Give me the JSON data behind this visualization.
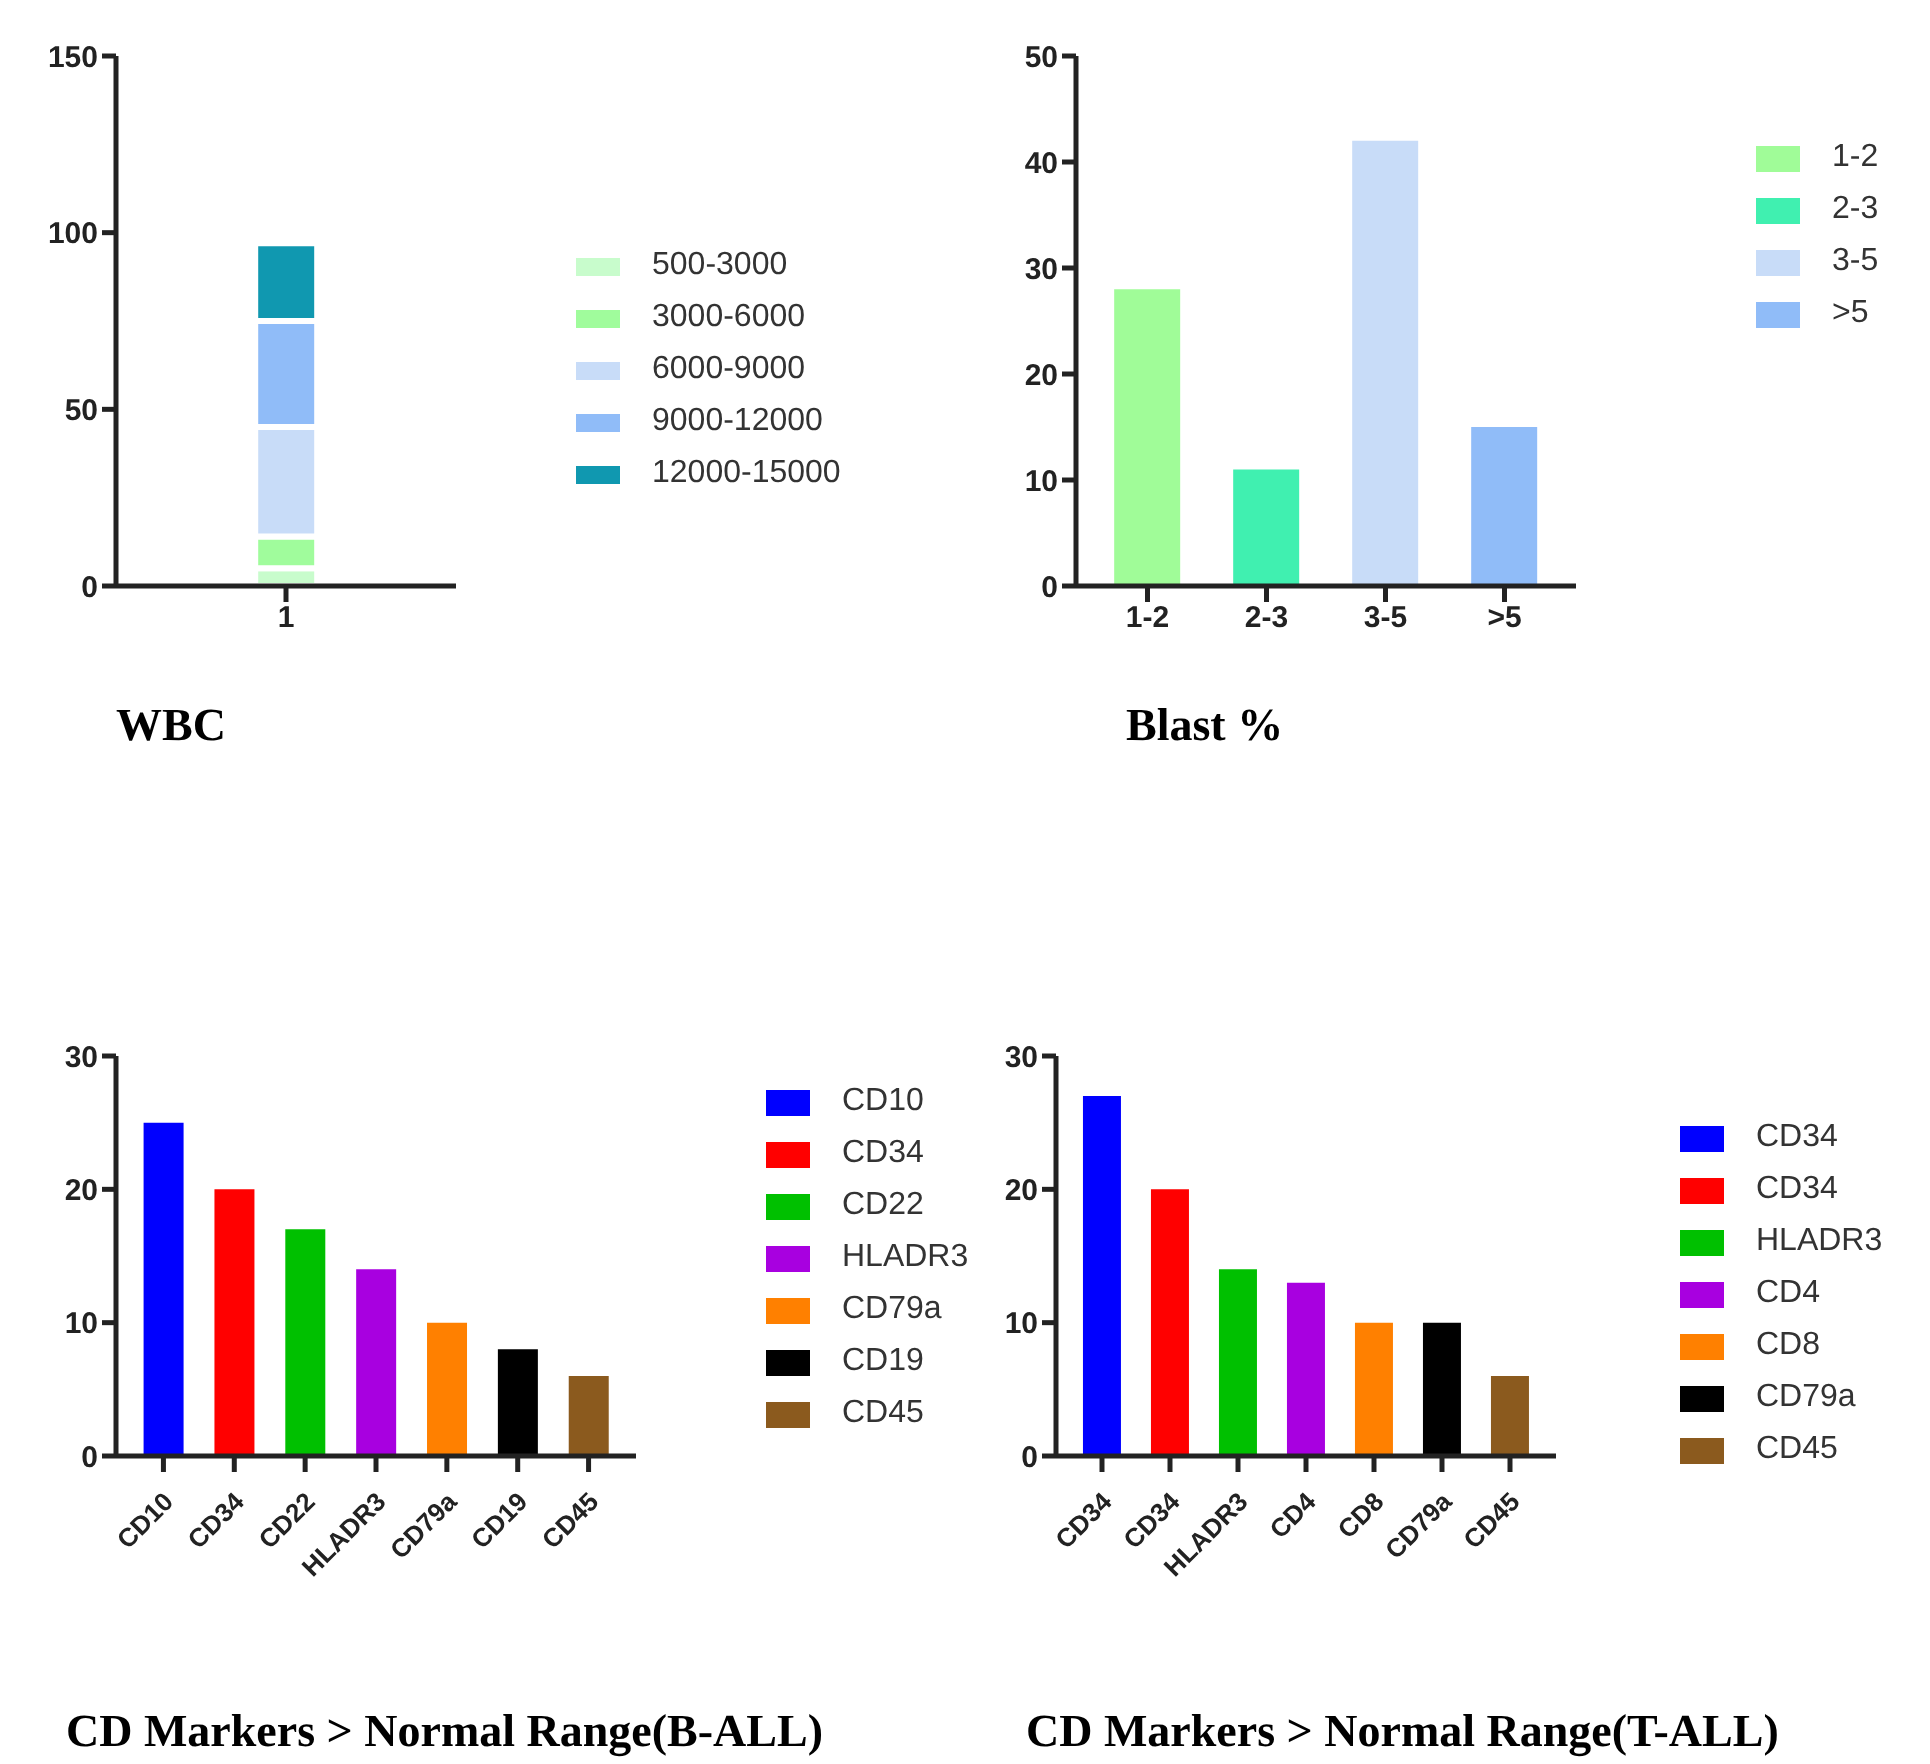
{
  "chart_data": [
    {
      "type": "bar",
      "title": "WBC",
      "categories": [
        "1"
      ],
      "stacked": true,
      "ylim": [
        0,
        150
      ],
      "yticks": [
        0,
        50,
        100,
        150
      ],
      "legend": "right",
      "series": [
        {
          "name": "500-3000",
          "color": "#c8fccc",
          "values": [
            5
          ]
        },
        {
          "name": "3000-6000",
          "color": "#a0fc9c",
          "values": [
            9
          ]
        },
        {
          "name": "6000-9000",
          "color": "#c8dcf8",
          "values": [
            31
          ]
        },
        {
          "name": "9000-12000",
          "color": "#90bcf8",
          "values": [
            30
          ]
        },
        {
          "name": "12000-15000",
          "color": "#1098b0",
          "values": [
            22
          ]
        }
      ]
    },
    {
      "type": "bar",
      "title": "Blast %",
      "categories": [
        "1-2",
        "2-3",
        "3-5",
        ">5"
      ],
      "ylim": [
        0,
        50
      ],
      "yticks": [
        0,
        10,
        20,
        30,
        40,
        50
      ],
      "legend": "right",
      "series": [
        {
          "name": "1-2",
          "color": "#a0fc98",
          "values": [
            28,
            null,
            null,
            null
          ]
        },
        {
          "name": "2-3",
          "color": "#40f0b0",
          "values": [
            null,
            11,
            null,
            null
          ]
        },
        {
          "name": "3-5",
          "color": "#c8dcf8",
          "values": [
            null,
            null,
            42,
            null
          ]
        },
        {
          "name": ">5",
          "color": "#90bcf8",
          "values": [
            null,
            null,
            null,
            15
          ]
        }
      ]
    },
    {
      "type": "bar",
      "title": "CD Markers > Normal Range(B-ALL)",
      "categories": [
        "CD10",
        "CD34",
        "CD22",
        "HLADR3",
        "CD79a",
        "CD19",
        "CD45"
      ],
      "ylim": [
        0,
        30
      ],
      "yticks": [
        0,
        10,
        20,
        30
      ],
      "legend": "right",
      "series": [
        {
          "name": "CD10",
          "color": "#0000ff",
          "values": [
            25,
            null,
            null,
            null,
            null,
            null,
            null
          ]
        },
        {
          "name": "CD34",
          "color": "#ff0000",
          "values": [
            null,
            20,
            null,
            null,
            null,
            null,
            null
          ]
        },
        {
          "name": "CD22",
          "color": "#00c000",
          "values": [
            null,
            null,
            17,
            null,
            null,
            null,
            null
          ]
        },
        {
          "name": "HLADR3",
          "color": "#a800e0",
          "values": [
            null,
            null,
            null,
            14,
            null,
            null,
            null
          ]
        },
        {
          "name": "CD79a",
          "color": "#ff8000",
          "values": [
            null,
            null,
            null,
            null,
            10,
            null,
            null
          ]
        },
        {
          "name": "CD19",
          "color": "#000000",
          "values": [
            null,
            null,
            null,
            null,
            null,
            8,
            null
          ]
        },
        {
          "name": "CD45",
          "color": "#8b5a1e",
          "values": [
            null,
            null,
            null,
            null,
            null,
            null,
            6
          ]
        }
      ]
    },
    {
      "type": "bar",
      "title": "CD Markers > Normal Range(T-ALL)",
      "categories": [
        "CD34",
        "CD34",
        "HLADR3",
        "CD4",
        "CD8",
        "CD79a",
        "CD45"
      ],
      "ylim": [
        0,
        30
      ],
      "yticks": [
        0,
        10,
        20,
        30
      ],
      "legend": "right",
      "series": [
        {
          "name": "CD34",
          "color": "#0000ff",
          "values": [
            27,
            null,
            null,
            null,
            null,
            null,
            null
          ]
        },
        {
          "name": "CD34",
          "color": "#ff0000",
          "values": [
            null,
            20,
            null,
            null,
            null,
            null,
            null
          ]
        },
        {
          "name": "HLADR3",
          "color": "#00c000",
          "values": [
            null,
            null,
            14,
            null,
            null,
            null,
            null
          ]
        },
        {
          "name": "CD4",
          "color": "#a800e0",
          "values": [
            null,
            null,
            null,
            13,
            null,
            null,
            null
          ]
        },
        {
          "name": "CD8",
          "color": "#ff8000",
          "values": [
            null,
            null,
            null,
            null,
            10,
            null,
            null
          ]
        },
        {
          "name": "CD79a",
          "color": "#000000",
          "values": [
            null,
            null,
            null,
            null,
            null,
            10,
            null
          ]
        },
        {
          "name": "CD45",
          "color": "#8b5a1e",
          "values": [
            null,
            null,
            null,
            null,
            null,
            null,
            6
          ]
        }
      ]
    }
  ]
}
